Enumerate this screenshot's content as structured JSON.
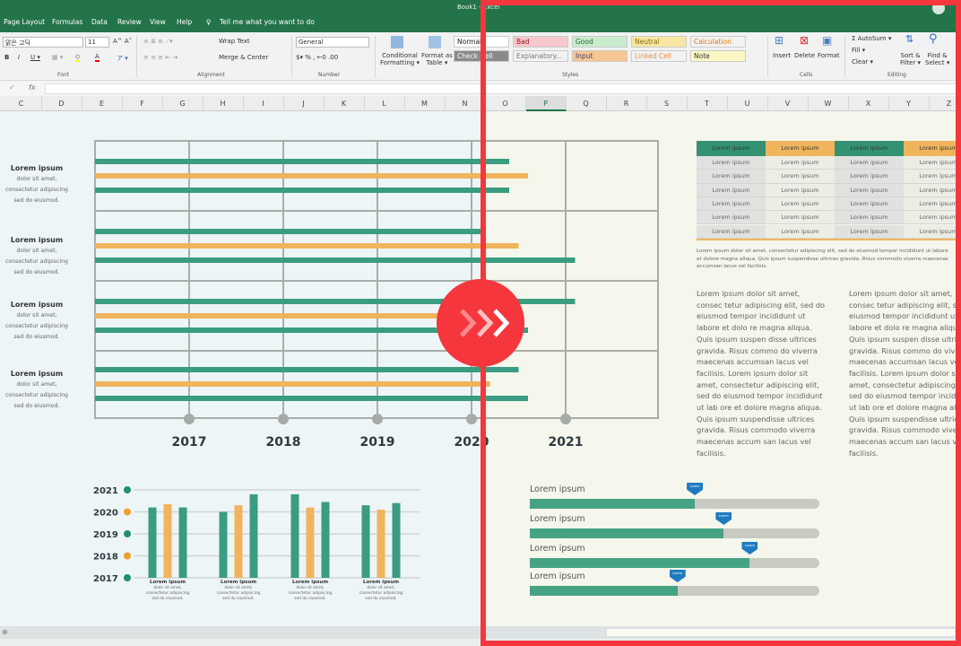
{
  "window": {
    "title": "Book1 - Excel"
  },
  "ribbon": {
    "tabs": [
      "Page Layout",
      "Formulas",
      "Data",
      "Review",
      "View",
      "Help"
    ],
    "tell_me": "Tell me what you want to do",
    "font_name": "맑은 고딕",
    "font_size": "11",
    "wrap_text": "Wrap Text",
    "merge_center": "Merge & Center",
    "number_format": "General",
    "conditional_formatting": [
      "Conditional",
      "Formatting ▾"
    ],
    "format_as_table": [
      "Format as",
      "Table ▾"
    ],
    "styles": [
      {
        "label": "Normal",
        "bg": "#ffffff",
        "color": "#222"
      },
      {
        "label": "Bad",
        "bg": "#f6c7cb",
        "color": "#9c1c25"
      },
      {
        "label": "Good",
        "bg": "#c8eccd",
        "color": "#1f6b2d"
      },
      {
        "label": "Neutral",
        "bg": "#f8e7a3",
        "color": "#8a6b0a"
      },
      {
        "label": "Calculation",
        "bg": "#f2f2f2",
        "color": "#e8750e"
      },
      {
        "label": "Check Cell",
        "bg": "#8a8a8a",
        "color": "#fff"
      },
      {
        "label": "Explanatory...",
        "bg": "#f1f2f1",
        "color": "#777"
      },
      {
        "label": "Input",
        "bg": "#f6c592",
        "color": "#3f3f76"
      },
      {
        "label": "Linked Cell",
        "bg": "#f1f2f1",
        "color": "#f08a3a"
      },
      {
        "label": "Note",
        "bg": "#fbf8c5",
        "color": "#333"
      }
    ],
    "cells": [
      "Insert",
      "Delete",
      "Format"
    ],
    "autosum": "Σ AutoSum ▾",
    "fill": "Fill ▾",
    "clear": "Clear ▾",
    "sort_filter": [
      "Sort &",
      "Filter ▾"
    ],
    "find_select": [
      "Find &",
      "Select ▾"
    ],
    "groups": [
      "Font",
      "Alignment",
      "Number",
      "Styles",
      "Cells",
      "Editing"
    ]
  },
  "formula_bar": {
    "check": "✓",
    "fx": "fx",
    "value": ""
  },
  "columns": [
    "C",
    "D",
    "E",
    "F",
    "G",
    "H",
    "I",
    "J",
    "K",
    "L",
    "M",
    "N",
    "O",
    "P",
    "Q",
    "R",
    "S",
    "T",
    "U",
    "V",
    "W",
    "X",
    "Y",
    "Z"
  ],
  "selected_column": "P",
  "colors": {
    "teal": "#3a9c80",
    "orange": "#f0b45e",
    "marker": "#1f7bbf",
    "frame": "#f5363c"
  },
  "chart_data": [
    {
      "type": "bar",
      "orientation": "horizontal",
      "categories": [
        {
          "title": "Lorem ipsum",
          "text": [
            "dolor sit amet,",
            "consectetur adipiscing",
            "sed do eiusmod."
          ]
        },
        {
          "title": "Lorem ipsum",
          "text": [
            "dolor sit amet,",
            "consectetur adipiscing",
            "sed do eiusmod."
          ]
        },
        {
          "title": "Lorem ipsum",
          "text": [
            "dolor sit amet,",
            "consectetur adipiscing",
            "sed do eiusmod."
          ]
        },
        {
          "title": "Lorem ipsum",
          "text": [
            "dolor sit amet,",
            "consectetur adipiscing",
            "sed do eiusmod."
          ]
        }
      ],
      "series_colors": [
        "#3a9c80",
        "#f0b45e",
        "#3a9c80"
      ],
      "values": [
        [
          2020.4,
          2020.6,
          2020.4
        ],
        [
          2020.1,
          2020.5,
          2021.1
        ],
        [
          2021.1,
          2020.0,
          2020.6
        ],
        [
          2020.5,
          2020.2,
          2020.6
        ]
      ],
      "xticks": [
        "2017",
        "2018",
        "2019",
        "2020",
        "2021"
      ],
      "xlim": [
        2016,
        2022
      ],
      "grid": true
    },
    {
      "type": "bar",
      "orientation": "vertical",
      "yticks": [
        "2021",
        "2020",
        "2019",
        "2018",
        "2017"
      ],
      "ylim": [
        2017,
        2021
      ],
      "tick_colors": [
        "#1f8f6e",
        "#f0a030",
        "#1f8f6e",
        "#f0a030",
        "#1f8f6e"
      ],
      "series_colors": [
        "#3a9c80",
        "#f0b45e",
        "#3a9c80"
      ],
      "values": [
        [
          2020.2,
          2020.35,
          2020.2
        ],
        [
          2020.0,
          2020.3,
          2020.8
        ],
        [
          2020.8,
          2020.2,
          2020.45
        ],
        [
          2020.3,
          2020.1,
          2020.4
        ]
      ],
      "categories": [
        {
          "title": "Lorem ipsum",
          "text": [
            "dolor sit amet,",
            "consectetur adipiscing",
            "sed do eiusmod."
          ]
        },
        {
          "title": "Lorem ipsum",
          "text": [
            "dolor sit amet,",
            "consectetur adipiscing",
            "sed do eiusmod."
          ]
        },
        {
          "title": "Lorem ipsum",
          "text": [
            "dolor sit amet,",
            "consectetur adipiscing",
            "sed do eiusmod."
          ]
        },
        {
          "title": "Lorem ipsum",
          "text": [
            "dolor sit amet,",
            "consectetur adipiscing",
            "sed do eiusmod."
          ]
        }
      ]
    }
  ],
  "table": {
    "header": [
      "Lorem ipsum",
      "Lorem ipsum",
      "Lorem ipsum",
      "Lorem ipsum"
    ],
    "rows": [
      [
        "Lorem ipsum",
        "Lorem ipsum",
        "Lorem ipsum",
        "Lorem ipsum"
      ],
      [
        "Lorem ipsum",
        "Lorem ipsum",
        "Lorem ipsum",
        "Lorem ipsum"
      ],
      [
        "Lorem ipsum",
        "Lorem ipsum",
        "Lorem ipsum",
        "Lorem ipsum"
      ],
      [
        "Lorem ipsum",
        "Lorem ipsum",
        "Lorem ipsum",
        "Lorem ipsum"
      ],
      [
        "Lorem ipsum",
        "Lorem ipsum",
        "Lorem ipsum",
        "Lorem ipsum"
      ],
      [
        "Lorem ipsum",
        "Lorem ipsum",
        "Lorem ipsum",
        "Lorem ipsum"
      ]
    ],
    "caption": "Lorem ipsum dolor sit amet, consectetur adipiscing elit, sed do eiusmod tempor incididunt ut labore et dolore magna aliqua. Quis ipsum suspendisse ultrices gravida. Risus commodo viverra maecenas accumsan lacus vel facilisis."
  },
  "paragraphs": [
    "Lorem ipsum dolor sit amet, consec tetur adipiscing elit, sed do eiusmod tempor incididunt ut labore et dolo re magna aliqua. Quis ipsum suspen disse ultrices gravida. Risus commo do viverra maecenas accumsan lacus vel facilisis. Lorem ipsum dolor sit amet, consectetur adipiscing elit, sed do eiusmod tempor incididunt ut lab ore et dolore magna aliqua. Quis ipsum suspendisse ultrices gravida. Risus commodo viverra maecenas accum san lacus vel facilisis.",
    "Lorem ipsum dolor sit amet, consec tetur adipiscing elit, sed do eiusmod tempor incididunt ut labore et dolo re magna aliqua. Quis ipsum suspen disse ultrices gravida. Risus commo do viverra maecenas accumsan lacus vel facilisis. Lorem ipsum dolor sit amet, consectetur adipiscing elit, sed do eiusmod tempor incididunt ut lab ore et dolore magna aliqua. Quis ipsum suspendisse ultrices gravida. Risus commodo viverra maecenas accum san lacus vel facilisis."
  ],
  "progress": [
    {
      "label": "Lorem ipsum",
      "value": 0.57,
      "marker": "Lorem"
    },
    {
      "label": "Lorem ipsum",
      "value": 0.67,
      "marker": "Lorem"
    },
    {
      "label": "Lorem ipsum",
      "value": 0.76,
      "marker": "Lorem"
    },
    {
      "label": "Lorem ipsum",
      "value": 0.51,
      "marker": "Lorem"
    }
  ]
}
